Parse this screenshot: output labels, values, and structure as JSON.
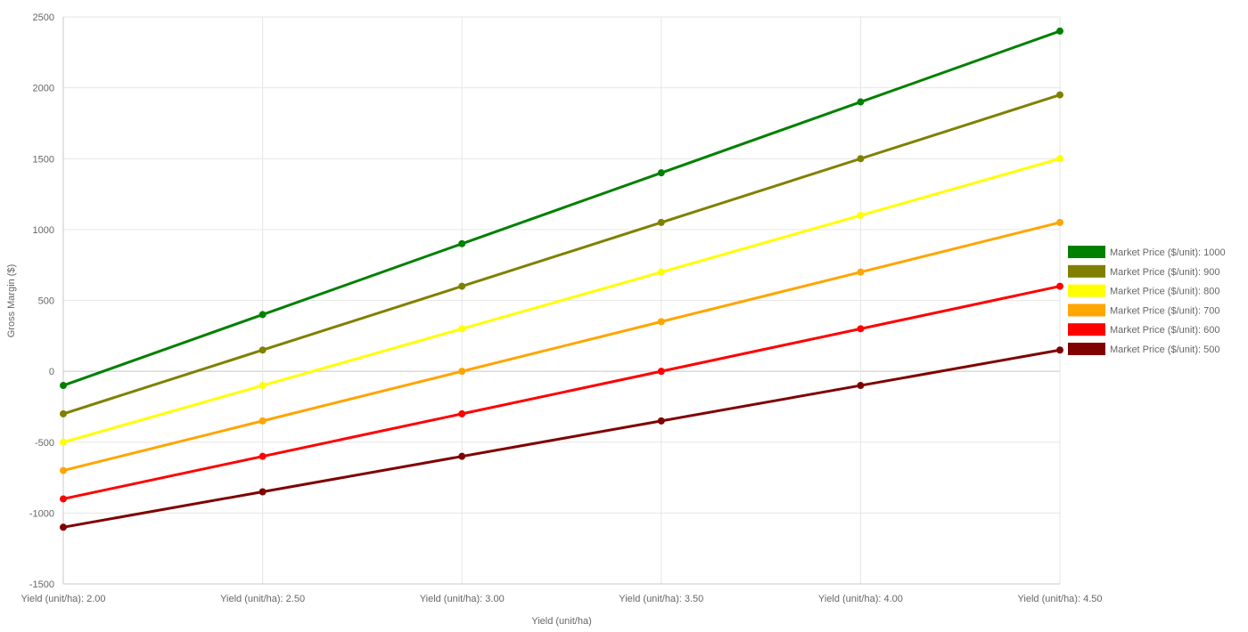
{
  "chart_data": {
    "type": "line",
    "xlabel": "Yield (unit/ha)",
    "ylabel": "Gross Margin ($)",
    "categories": [
      "Yield (unit/ha): 2.00",
      "Yield (unit/ha): 2.50",
      "Yield (unit/ha): 3.00",
      "Yield (unit/ha): 3.50",
      "Yield (unit/ha): 4.00",
      "Yield (unit/ha): 4.50"
    ],
    "x": [
      2.0,
      2.5,
      3.0,
      3.5,
      4.0,
      4.5
    ],
    "ylim": [
      -1500,
      2500
    ],
    "yticks": [
      2500,
      2000,
      1500,
      1000,
      500,
      0,
      -500,
      -1000,
      -1500
    ],
    "grid": true,
    "legend_position": "right",
    "series": [
      {
        "name": "Market Price ($/unit): 1000",
        "color": "#008000",
        "values": [
          -100,
          400,
          900,
          1400,
          1900,
          2400
        ]
      },
      {
        "name": "Market Price ($/unit): 900",
        "color": "#808000",
        "values": [
          -300,
          150,
          600,
          1050,
          1500,
          1950
        ]
      },
      {
        "name": "Market Price ($/unit): 800",
        "color": "#ffff00",
        "values": [
          -500,
          -100,
          300,
          700,
          1100,
          1500
        ]
      },
      {
        "name": "Market Price ($/unit): 700",
        "color": "#ffa500",
        "values": [
          -700,
          -350,
          0,
          350,
          700,
          1050
        ]
      },
      {
        "name": "Market Price ($/unit): 600",
        "color": "#ff0000",
        "values": [
          -900,
          -600,
          -300,
          0,
          300,
          600
        ]
      },
      {
        "name": "Market Price ($/unit): 500",
        "color": "#800000",
        "values": [
          -1100,
          -850,
          -600,
          -350,
          -100,
          150
        ]
      }
    ]
  }
}
